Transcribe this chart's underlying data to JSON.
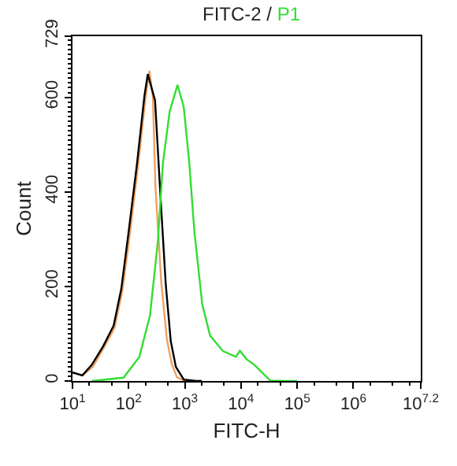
{
  "chart_data": {
    "type": "line",
    "title": "FITC-2 /",
    "xlabel": "FITC-H",
    "ylabel": "Count",
    "log": "x",
    "xlim": [
      10,
      15848932
    ],
    "xticks": [
      {
        "value": 10,
        "label": "10$^{1}$"
      },
      {
        "value": 100,
        "label": "10$^{2}$"
      },
      {
        "value": 1000,
        "label": "10$^{3}$"
      },
      {
        "value": 10000,
        "label": "10$^{4}$"
      },
      {
        "value": 100000,
        "label": "10$^{5}$"
      },
      {
        "value": 1000000,
        "label": "10$^{6}$"
      },
      {
        "value": 15848932,
        "label": "10$^{7.2}$"
      }
    ],
    "ylim": [
      0,
      729
    ],
    "yticks": [
      0,
      200,
      400,
      600,
      729
    ],
    "marker": "none",
    "line_style": "solid",
    "series": [
      {
        "color": "#f0a060",
        "x": [
          10,
          15,
          23,
          36,
          56,
          77,
          105,
          147,
          200,
          234,
          270,
          300,
          380,
          479,
          589,
          724,
          1000,
          2000
        ],
        "values": [
          18,
          12,
          30,
          70,
          112,
          190,
          310,
          455,
          600,
          656,
          600,
          410,
          210,
          88,
          35,
          8,
          0,
          0
        ]
      },
      {
        "color": "#000000",
        "x": [
          10,
          15,
          22,
          35,
          54,
          74,
          100,
          141,
          191,
          219,
          295,
          363,
          457,
          562,
          692,
          955,
          1585,
          2000
        ],
        "values": [
          18,
          12,
          34,
          73,
          117,
          195,
          316,
          460,
          603,
          649,
          593,
          404,
          205,
          84,
          30,
          3,
          0,
          0
        ]
      },
      {
        "name": "P1",
        "color": "#33dd33",
        "x": [
          22,
          81,
          155,
          240,
          331,
          407,
          537,
          741,
          955,
          1202,
          1479,
          2042,
          2818,
          4786,
          8128,
          9550,
          12589,
          17378,
          33113,
          63096,
          100000
        ],
        "values": [
          0,
          7,
          51,
          139,
          295,
          460,
          570,
          626,
          580,
          460,
          316,
          162,
          96,
          63,
          51,
          64,
          46,
          34,
          1,
          0,
          0
        ]
      }
    ]
  }
}
